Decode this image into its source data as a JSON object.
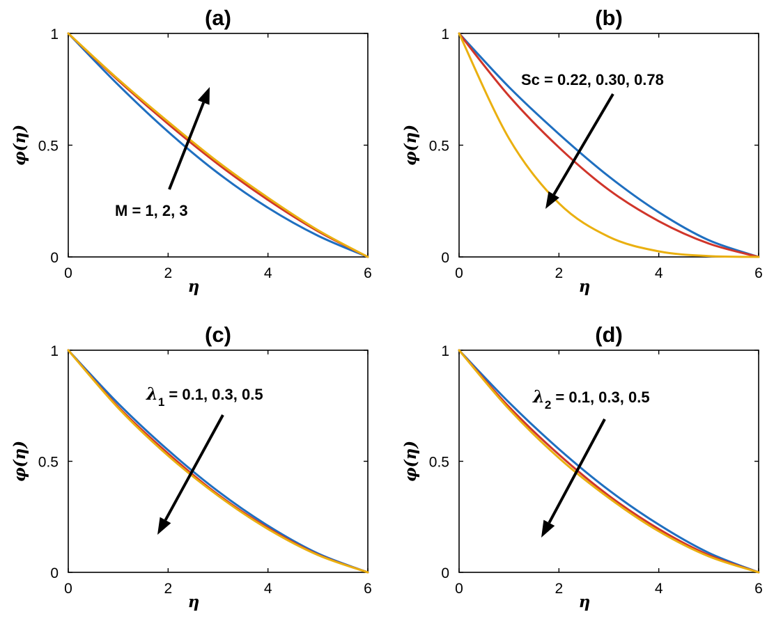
{
  "colors": {
    "series1": "#1f6fc0",
    "series2": "#d0352a",
    "series3": "#eab010"
  },
  "chart_data": [
    {
      "type": "line",
      "title": "(a)",
      "xlabel": "η",
      "ylabel": "φ(η)",
      "xlim": [
        0,
        6
      ],
      "ylim": [
        0,
        1
      ],
      "xticks": [
        "0",
        "2",
        "4",
        "6"
      ],
      "yticks": [
        "0",
        "0.5",
        "1"
      ],
      "annotation": "M = 1, 2, 3",
      "arrow_direction": "up",
      "x": [
        0,
        1,
        2,
        3,
        4,
        5,
        6
      ],
      "series": [
        {
          "values": [
            1,
            0.77,
            0.56,
            0.375,
            0.22,
            0.095,
            0
          ]
        },
        {
          "values": [
            1,
            0.79,
            0.595,
            0.415,
            0.255,
            0.115,
            0
          ]
        },
        {
          "values": [
            1,
            0.795,
            0.605,
            0.425,
            0.265,
            0.12,
            0
          ]
        }
      ]
    },
    {
      "type": "line",
      "title": "(b)",
      "xlabel": "η",
      "ylabel": "φ(η)",
      "xlim": [
        0,
        6
      ],
      "ylim": [
        0,
        1
      ],
      "xticks": [
        "0",
        "2",
        "4",
        "6"
      ],
      "yticks": [
        "0",
        "0.5",
        "1"
      ],
      "annotation": "Sc = 0.22, 0.30, 0.78",
      "arrow_direction": "down",
      "x": [
        0,
        1,
        2,
        3,
        4,
        5,
        6
      ],
      "series": [
        {
          "values": [
            1,
            0.76,
            0.55,
            0.36,
            0.2,
            0.075,
            0
          ]
        },
        {
          "values": [
            1,
            0.72,
            0.49,
            0.3,
            0.16,
            0.06,
            0
          ]
        },
        {
          "values": [
            1,
            0.53,
            0.24,
            0.09,
            0.025,
            0.004,
            0
          ]
        }
      ]
    },
    {
      "type": "line",
      "title": "(c)",
      "xlabel": "η",
      "ylabel": "φ(η)",
      "xlim": [
        0,
        6
      ],
      "ylim": [
        0,
        1
      ],
      "xticks": [
        "0",
        "2",
        "4",
        "6"
      ],
      "yticks": [
        "0",
        "0.5",
        "1"
      ],
      "annotation_symbol": "λ",
      "annotation_sub": "1",
      "annotation_rest": " = 0.1, 0.3, 0.5",
      "arrow_direction": "down",
      "x": [
        0,
        1,
        2,
        3,
        4,
        5,
        6
      ],
      "series": [
        {
          "values": [
            1,
            0.76,
            0.55,
            0.365,
            0.21,
            0.085,
            0
          ]
        },
        {
          "values": [
            1,
            0.745,
            0.535,
            0.35,
            0.2,
            0.08,
            0
          ]
        },
        {
          "values": [
            1,
            0.74,
            0.525,
            0.345,
            0.195,
            0.078,
            0
          ]
        }
      ]
    },
    {
      "type": "line",
      "title": "(d)",
      "xlabel": "η",
      "ylabel": "φ(η)",
      "xlim": [
        0,
        6
      ],
      "ylim": [
        0,
        1
      ],
      "xticks": [
        "0",
        "2",
        "4",
        "6"
      ],
      "yticks": [
        "0",
        "0.5",
        "1"
      ],
      "annotation_symbol": "λ",
      "annotation_sub": "2",
      "annotation_rest": " = 0.1, 0.3, 0.5",
      "arrow_direction": "down",
      "x": [
        0,
        1,
        2,
        3,
        4,
        5,
        6
      ],
      "series": [
        {
          "values": [
            1,
            0.765,
            0.555,
            0.37,
            0.215,
            0.088,
            0
          ]
        },
        {
          "values": [
            1,
            0.745,
            0.53,
            0.345,
            0.195,
            0.078,
            0
          ]
        },
        {
          "values": [
            1,
            0.735,
            0.515,
            0.335,
            0.185,
            0.072,
            0
          ]
        }
      ]
    }
  ]
}
